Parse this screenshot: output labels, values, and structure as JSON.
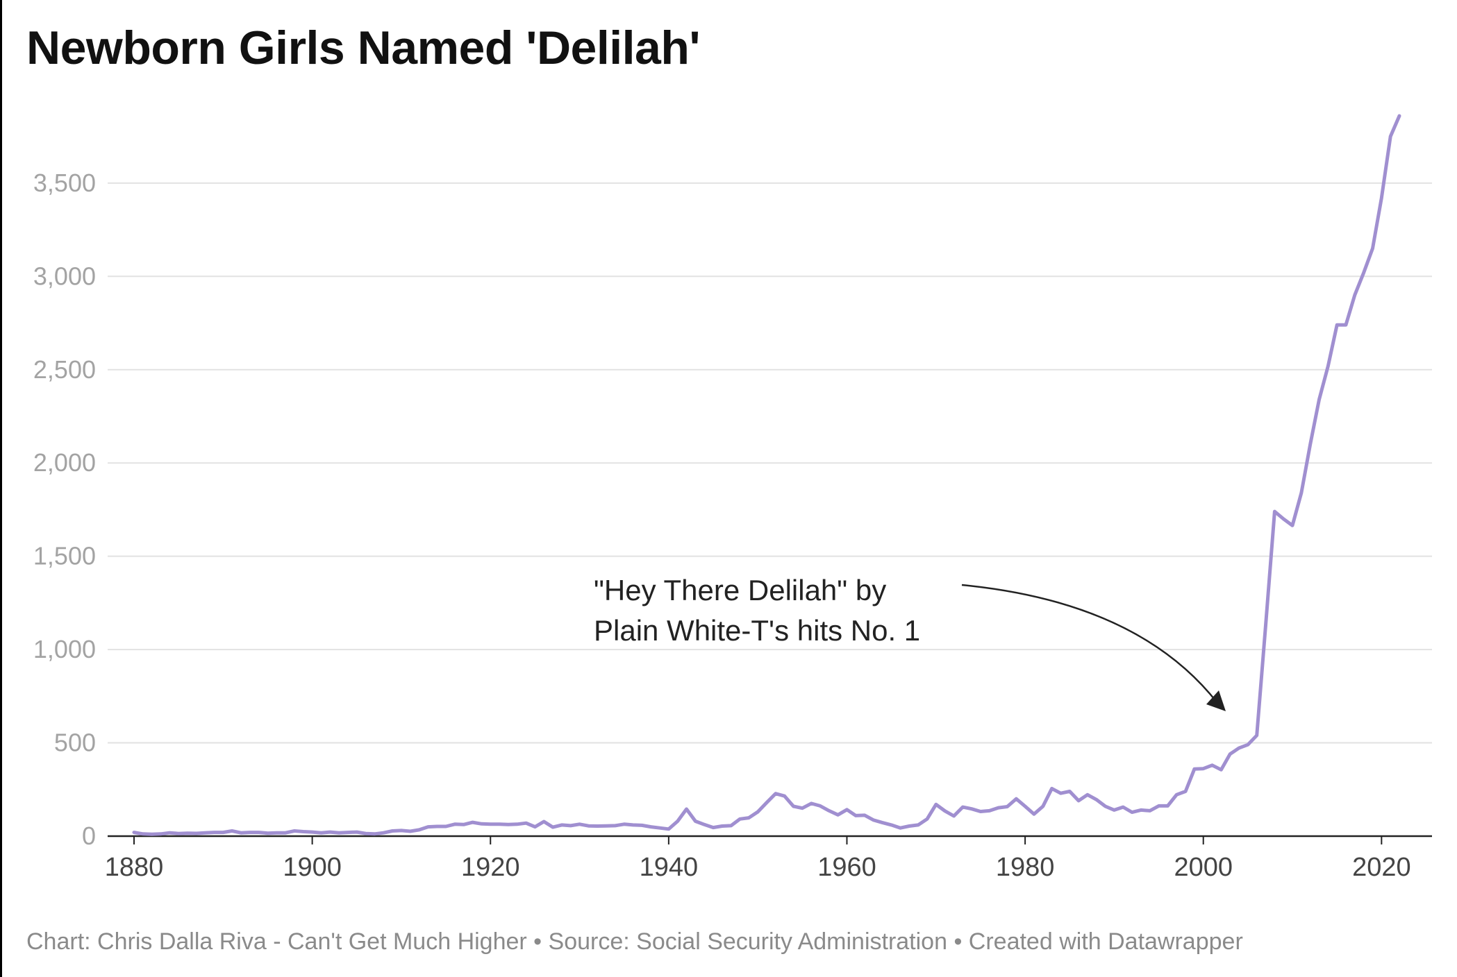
{
  "title": "Newborn Girls Named 'Delilah'",
  "footer": "Chart: Chris Dalla Riva - Can't Get Much Higher • Source: Social Security Administration • Created with Datawrapper",
  "chart_data": {
    "type": "line",
    "title": "Newborn Girls Named 'Delilah'",
    "xlabel": "",
    "ylabel": "",
    "xlim": [
      1880,
      2022
    ],
    "ylim": [
      0,
      3900
    ],
    "x_ticks": [
      1880,
      1900,
      1920,
      1940,
      1960,
      1980,
      2000,
      2020
    ],
    "y_ticks": [
      0,
      500,
      1000,
      1500,
      2000,
      2500,
      3000,
      3500
    ],
    "y_tick_labels": [
      "0",
      "500",
      "1,000",
      "1,500",
      "2,000",
      "2,500",
      "3,000",
      "3,500"
    ],
    "x_tick_labels": [
      "1880",
      "1900",
      "1920",
      "1940",
      "1960",
      "1980",
      "2000",
      "2020"
    ],
    "grid": true,
    "line_color": "#a08fd0",
    "annotation": {
      "lines": [
        "\"Hey There Delilah\" by",
        "Plain White-T's hits No. 1"
      ],
      "points_to_year": 2006
    },
    "series": [
      {
        "x": [
          1880,
          1881,
          1882,
          1883,
          1884,
          1885,
          1886,
          1887,
          1888,
          1889,
          1890,
          1891,
          1892,
          1893,
          1894,
          1895,
          1896,
          1897,
          1898,
          1899,
          1900,
          1901,
          1902,
          1903,
          1904,
          1905,
          1906,
          1907,
          1908,
          1909,
          1910,
          1911,
          1912,
          1913,
          1914,
          1915,
          1916,
          1917,
          1918,
          1919,
          1920,
          1921,
          1922,
          1923,
          1924,
          1925,
          1926,
          1927,
          1928,
          1929,
          1930,
          1931,
          1932,
          1933,
          1934,
          1935,
          1936,
          1937,
          1938,
          1939,
          1940,
          1941,
          1942,
          1943,
          1944,
          1945,
          1946,
          1947,
          1948,
          1949,
          1950,
          1951,
          1952,
          1953,
          1954,
          1955,
          1956,
          1957,
          1958,
          1959,
          1960,
          1961,
          1962,
          1963,
          1964,
          1965,
          1966,
          1967,
          1968,
          1969,
          1970,
          1971,
          1972,
          1973,
          1974,
          1975,
          1976,
          1977,
          1978,
          1979,
          1980,
          1981,
          1982,
          1983,
          1984,
          1985,
          1986,
          1987,
          1988,
          1989,
          1990,
          1991,
          1992,
          1993,
          1994,
          1995,
          1996,
          1997,
          1998,
          1999,
          2000,
          2001,
          2002,
          2003,
          2004,
          2005,
          2006,
          2007,
          2008,
          2009,
          2010,
          2011,
          2012,
          2013,
          2014,
          2015,
          2016,
          2017,
          2018,
          2019,
          2020,
          2021,
          2022
        ],
        "y": [
          20,
          12,
          10,
          12,
          18,
          14,
          16,
          15,
          18,
          20,
          20,
          28,
          18,
          20,
          20,
          16,
          18,
          18,
          28,
          24,
          22,
          18,
          22,
          18,
          20,
          22,
          14,
          12,
          18,
          28,
          30,
          26,
          34,
          50,
          52,
          52,
          64,
          62,
          74,
          66,
          64,
          64,
          62,
          64,
          70,
          50,
          78,
          48,
          60,
          56,
          64,
          55,
          54,
          55,
          56,
          64,
          60,
          58,
          50,
          44,
          38,
          80,
          145,
          80,
          62,
          46,
          54,
          56,
          92,
          98,
          130,
          180,
          228,
          215,
          160,
          150,
          175,
          162,
          136,
          114,
          142,
          110,
          112,
          86,
          72,
          60,
          44,
          54,
          60,
          92,
          170,
          135,
          108,
          156,
          146,
          132,
          136,
          152,
          158,
          200,
          160,
          118,
          160,
          255,
          230,
          240,
          190,
          222,
          196,
          160,
          140,
          156,
          128,
          140,
          136,
          162,
          162,
          222,
          240,
          360,
          362,
          380,
          356,
          440,
          472,
          490,
          540,
          1130,
          1740,
          1700,
          1665,
          1840,
          2100,
          2340,
          2520,
          2740,
          2740,
          2900,
          3020,
          3150,
          3420,
          3750,
          3860
        ]
      }
    ]
  }
}
